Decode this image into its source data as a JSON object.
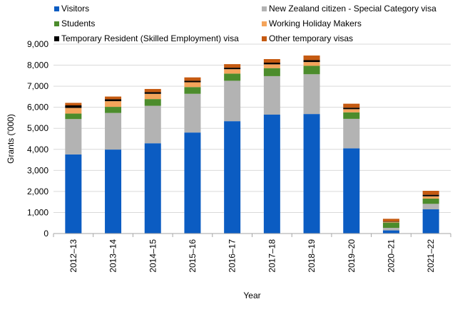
{
  "chart_data": {
    "type": "bar",
    "stacked": true,
    "xlabel": "Year",
    "ylabel": "Grants ('000)",
    "ylim": [
      0,
      9000
    ],
    "yticks": [
      0,
      1000,
      2000,
      3000,
      4000,
      5000,
      6000,
      7000,
      8000,
      9000
    ],
    "ytick_labels": [
      "0",
      "1,000",
      "2,000",
      "3,000",
      "4,000",
      "5,000",
      "6,000",
      "7,000",
      "8,000",
      "9,000"
    ],
    "grid": true,
    "legend_position": "top",
    "categories": [
      "2012–13",
      "2013–14",
      "2014–15",
      "2015–16",
      "2016–17",
      "2017–18",
      "2018–19",
      "2019–20",
      "2020–21",
      "2021–22"
    ],
    "series": [
      {
        "name": "Visitors",
        "color": "#0b5cc2",
        "values": [
          3760,
          3990,
          4290,
          4800,
          5340,
          5650,
          5680,
          4050,
          150,
          1150
        ]
      },
      {
        "name": "New Zealand citizen - Special Category visa",
        "color": "#b3b3b3",
        "values": [
          1680,
          1740,
          1780,
          1840,
          1920,
          1830,
          1890,
          1400,
          120,
          260
        ]
      },
      {
        "name": "Students",
        "color": "#4c8c2c",
        "values": [
          260,
          290,
          320,
          320,
          340,
          380,
          400,
          310,
          250,
          250
        ]
      },
      {
        "name": "Working Holiday Makers",
        "color": "#f4a45b",
        "values": [
          270,
          270,
          250,
          230,
          210,
          180,
          180,
          150,
          30,
          110
        ]
      },
      {
        "name": "Temporary Resident (Skilled Employment) visa",
        "color": "#000000",
        "values": [
          120,
          90,
          80,
          70,
          70,
          80,
          90,
          70,
          20,
          70
        ]
      },
      {
        "name": "Other temporary visas",
        "color": "#c55a11",
        "values": [
          120,
          130,
          150,
          160,
          170,
          170,
          220,
          190,
          130,
          190
        ]
      }
    ]
  }
}
